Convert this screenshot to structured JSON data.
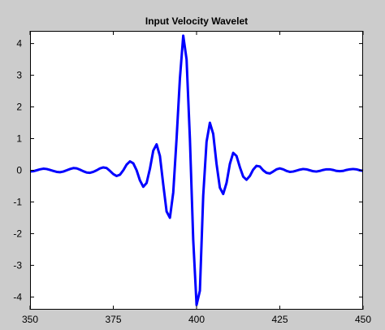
{
  "chart_data": {
    "type": "line",
    "title": "Input Velocity Wavelet",
    "xlabel": "",
    "ylabel": "",
    "xlim": [
      350,
      450
    ],
    "ylim": [
      -4.4,
      4.4
    ],
    "x_ticks": [
      350,
      375,
      400,
      425,
      450
    ],
    "y_ticks": [
      4,
      3,
      2,
      1,
      0,
      -1,
      -2,
      -3,
      -4
    ],
    "grid": false,
    "legend": "none",
    "series": [
      {
        "color": "#0000ff",
        "x": [
          350,
          351,
          352,
          353,
          354,
          355,
          356,
          357,
          358,
          359,
          360,
          361,
          362,
          363,
          364,
          365,
          366,
          367,
          368,
          369,
          370,
          371,
          372,
          373,
          374,
          375,
          376,
          377,
          378,
          379,
          380,
          381,
          382,
          383,
          384,
          385,
          386,
          387,
          388,
          389,
          390,
          391,
          392,
          393,
          394,
          395,
          396,
          397,
          398,
          399,
          400,
          401,
          402,
          403,
          404,
          405,
          406,
          407,
          408,
          409,
          410,
          411,
          412,
          413,
          414,
          415,
          416,
          417,
          418,
          419,
          420,
          421,
          422,
          423,
          424,
          425,
          426,
          427,
          428,
          429,
          430,
          431,
          432,
          433,
          434,
          435,
          436,
          437,
          438,
          439,
          440,
          441,
          442,
          443,
          444,
          445,
          446,
          447,
          448,
          449,
          450
        ],
        "y": [
          -0.04,
          -0.03,
          0.0,
          0.03,
          0.05,
          0.04,
          0.01,
          -0.02,
          -0.05,
          -0.06,
          -0.04,
          0.0,
          0.04,
          0.07,
          0.06,
          0.02,
          -0.03,
          -0.07,
          -0.08,
          -0.05,
          0.0,
          0.06,
          0.09,
          0.07,
          -0.02,
          -0.12,
          -0.18,
          -0.14,
          0.0,
          0.18,
          0.28,
          0.22,
          0.0,
          -0.32,
          -0.52,
          -0.4,
          0.05,
          0.62,
          0.82,
          0.45,
          -0.45,
          -1.3,
          -1.5,
          -0.7,
          1.0,
          2.9,
          4.25,
          3.5,
          1.0,
          -2.2,
          -4.25,
          -3.8,
          -0.8,
          0.9,
          1.5,
          1.15,
          0.2,
          -0.55,
          -0.75,
          -0.4,
          0.2,
          0.55,
          0.45,
          0.1,
          -0.2,
          -0.3,
          -0.18,
          0.02,
          0.14,
          0.12,
          0.0,
          -0.08,
          -0.1,
          -0.04,
          0.03,
          0.06,
          0.03,
          -0.02,
          -0.05,
          -0.04,
          -0.01,
          0.02,
          0.04,
          0.03,
          0.0,
          -0.03,
          -0.04,
          -0.02,
          0.01,
          0.03,
          0.03,
          0.01,
          -0.02,
          -0.03,
          -0.02,
          0.01,
          0.03,
          0.04,
          0.03,
          0.0,
          -0.02
        ]
      }
    ]
  }
}
